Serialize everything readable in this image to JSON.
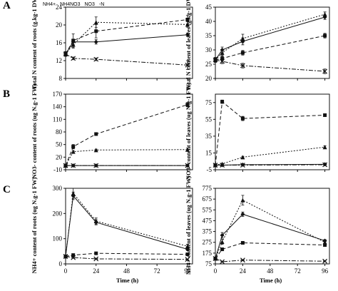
{
  "figure": {
    "panel_letters": [
      "A",
      "B",
      "C"
    ],
    "legend": [
      "NH4+",
      "NH4NO3",
      "NO3",
      "-N"
    ]
  },
  "chart_data": [
    {
      "id": "A-left",
      "type": "line",
      "panel": "A",
      "ylabel": "Total N content of roots (g.kg-1 DW)",
      "xlabel": "",
      "ylim": [
        8,
        24
      ],
      "yticks": [
        8,
        12,
        16,
        20,
        24
      ],
      "xlim": [
        0,
        100
      ],
      "xticks": [
        0,
        24,
        48,
        72,
        96
      ],
      "xticklabels": [
        "",
        "",
        "",
        "",
        ""
      ],
      "series": [
        {
          "name": "NH4+",
          "x": [
            0,
            6,
            24,
            96
          ],
          "y": [
            13.5,
            16.2,
            16.2,
            17.8
          ],
          "err": [
            0.5,
            0.6,
            0.5,
            0.4
          ]
        },
        {
          "name": "NH4NO3",
          "x": [
            0,
            6,
            24,
            96
          ],
          "y": [
            13.5,
            15.6,
            20.6,
            20.1
          ],
          "err": [
            0.5,
            0.8,
            1.2,
            0.6
          ]
        },
        {
          "name": "NO3",
          "x": [
            0,
            6,
            24,
            96
          ],
          "y": [
            13.5,
            16.5,
            18.6,
            21.2
          ],
          "err": [
            0.5,
            1.5,
            1.5,
            1.0
          ]
        },
        {
          "name": "-N",
          "x": [
            0,
            6,
            24,
            96
          ],
          "y": [
            13.5,
            12.5,
            12.3,
            11.0
          ],
          "err": [
            0.5,
            0.3,
            0.3,
            1.0
          ]
        }
      ]
    },
    {
      "id": "A-right",
      "type": "line",
      "panel": "A",
      "ylabel": "Total N content of leaves (g.kg-1 DW)",
      "xlabel": "",
      "ylim": [
        20,
        45
      ],
      "yticks": [
        20,
        25,
        30,
        35,
        40,
        45
      ],
      "xlim": [
        0,
        100
      ],
      "xticks": [
        0,
        24,
        48,
        72,
        96
      ],
      "xticklabels": [
        "",
        "",
        "",
        "",
        ""
      ],
      "series": [
        {
          "name": "NH4+",
          "x": [
            0,
            6,
            24,
            96
          ],
          "y": [
            26.5,
            30.0,
            33.0,
            41.5
          ],
          "err": [
            0.8,
            1.0,
            1.2,
            0.8
          ]
        },
        {
          "name": "NH4NO3",
          "x": [
            0,
            6,
            24,
            96
          ],
          "y": [
            26.5,
            29.0,
            34.0,
            42.5
          ],
          "err": [
            0.8,
            1.0,
            1.5,
            0.8
          ]
        },
        {
          "name": "NO3",
          "x": [
            0,
            6,
            24,
            96
          ],
          "y": [
            26.5,
            27.0,
            29.0,
            35.0
          ],
          "err": [
            0.8,
            0.8,
            0.8,
            0.8
          ]
        },
        {
          "name": "-N",
          "x": [
            0,
            6,
            24,
            96
          ],
          "y": [
            26.5,
            26.0,
            24.5,
            22.5
          ],
          "err": [
            0.8,
            0.8,
            0.8,
            0.8
          ]
        }
      ]
    },
    {
      "id": "B-left",
      "type": "line",
      "panel": "B",
      "ylabel": "NO3- content of roots (ug N.g-1 FW)",
      "xlabel": "",
      "ylim": [
        -10,
        170
      ],
      "yticks": [
        -10,
        20,
        50,
        80,
        110,
        140,
        170
      ],
      "xlim": [
        0,
        100
      ],
      "xticks": [
        0,
        24,
        48,
        72,
        96
      ],
      "xticklabels": [
        "",
        "",
        "",
        "",
        ""
      ],
      "series": [
        {
          "name": "NH4+",
          "x": [
            0,
            6,
            24,
            96
          ],
          "y": [
            0,
            0,
            0,
            0
          ],
          "err": [
            1,
            1,
            1,
            1
          ]
        },
        {
          "name": "NH4NO3",
          "x": [
            0,
            6,
            24,
            96
          ],
          "y": [
            0,
            33,
            37,
            38
          ],
          "err": [
            1,
            3,
            2,
            4
          ]
        },
        {
          "name": "NO3",
          "x": [
            0,
            6,
            24,
            96
          ],
          "y": [
            0,
            45,
            75,
            145
          ],
          "err": [
            1,
            5,
            3,
            5
          ]
        },
        {
          "name": "-N",
          "x": [
            0,
            6,
            24,
            96
          ],
          "y": [
            0,
            0,
            0,
            0
          ],
          "err": [
            1,
            1,
            1,
            1
          ]
        }
      ]
    },
    {
      "id": "B-right",
      "type": "line",
      "panel": "B",
      "ylabel": "NO3- content of leaves (ug N.g-1 FW)",
      "xlabel": "",
      "ylim": [
        -5,
        85
      ],
      "yticks": [
        -5,
        15,
        35,
        55,
        75
      ],
      "xlim": [
        0,
        100
      ],
      "xticks": [
        0,
        24,
        48,
        72,
        96
      ],
      "xticklabels": [
        "",
        "",
        "",
        "",
        ""
      ],
      "series": [
        {
          "name": "NH4+",
          "x": [
            0,
            6,
            24,
            96
          ],
          "y": [
            0.5,
            0.5,
            1.0,
            1.5
          ],
          "err": [
            0.5,
            0.5,
            0.5,
            0.5
          ]
        },
        {
          "name": "NH4NO3",
          "x": [
            0,
            6,
            24,
            96
          ],
          "y": [
            0.5,
            2.0,
            10.0,
            22.0
          ],
          "err": [
            0.5,
            0.5,
            1.0,
            1.5
          ]
        },
        {
          "name": "NO3",
          "x": [
            0,
            6,
            24,
            96
          ],
          "y": [
            0.5,
            76.0,
            56.0,
            60.0
          ],
          "err": [
            0.5,
            2.0,
            2.5,
            1.5
          ]
        },
        {
          "name": "-N",
          "x": [
            0,
            6,
            24,
            96
          ],
          "y": [
            0.5,
            0.5,
            0.5,
            1.0
          ],
          "err": [
            0.5,
            0.5,
            0.5,
            0.5
          ]
        }
      ]
    },
    {
      "id": "C-left",
      "type": "line",
      "panel": "C",
      "ylabel": "NH4+ content of roots (ug N.g-1 FW)",
      "xlabel": "Time (h)",
      "ylim": [
        0,
        300
      ],
      "yticks": [
        0,
        100,
        200,
        300
      ],
      "xlim": [
        0,
        100
      ],
      "xticks": [
        0,
        24,
        48,
        72,
        96
      ],
      "xticklabels": [
        "0",
        "24",
        "48",
        "72",
        "96"
      ],
      "series": [
        {
          "name": "NH4+",
          "x": [
            0,
            6,
            24,
            96
          ],
          "y": [
            30,
            270,
            165,
            58
          ],
          "err": [
            3,
            15,
            10,
            5
          ]
        },
        {
          "name": "NH4NO3",
          "x": [
            0,
            6,
            24,
            96
          ],
          "y": [
            30,
            280,
            170,
            70
          ],
          "err": [
            3,
            20,
            12,
            8
          ]
        },
        {
          "name": "NO3",
          "x": [
            0,
            6,
            24,
            96
          ],
          "y": [
            30,
            35,
            42,
            38
          ],
          "err": [
            3,
            3,
            3,
            3
          ]
        },
        {
          "name": "-N",
          "x": [
            0,
            6,
            24,
            96
          ],
          "y": [
            30,
            25,
            20,
            18
          ],
          "err": [
            3,
            3,
            2,
            2
          ]
        }
      ]
    },
    {
      "id": "C-right",
      "type": "line",
      "panel": "C",
      "ylabel": "NH4+ content of leaves (ug N.g-1 FW)",
      "xlabel": "Time (h)",
      "ylim": [
        75,
        775
      ],
      "yticks": [
        75,
        175,
        275,
        375,
        475,
        575,
        675,
        775
      ],
      "xlim": [
        0,
        100
      ],
      "xticks": [
        0,
        24,
        48,
        72,
        96
      ],
      "xticklabels": [
        "0",
        "24",
        "48",
        "72",
        "96"
      ],
      "series": [
        {
          "name": "NH4+",
          "x": [
            0,
            6,
            24,
            96
          ],
          "y": [
            125,
            340,
            535,
            290
          ],
          "err": [
            10,
            25,
            20,
            10
          ]
        },
        {
          "name": "NH4NO3",
          "x": [
            0,
            6,
            24,
            96
          ],
          "y": [
            125,
            280,
            665,
            275
          ],
          "err": [
            10,
            25,
            45,
            10
          ]
        },
        {
          "name": "NO3",
          "x": [
            0,
            6,
            24,
            96
          ],
          "y": [
            125,
            210,
            270,
            250
          ],
          "err": [
            10,
            10,
            10,
            8
          ]
        },
        {
          "name": "-N",
          "x": [
            0,
            6,
            24,
            96
          ],
          "y": [
            125,
            95,
            110,
            100
          ],
          "err": [
            8,
            5,
            5,
            5
          ]
        }
      ]
    }
  ]
}
